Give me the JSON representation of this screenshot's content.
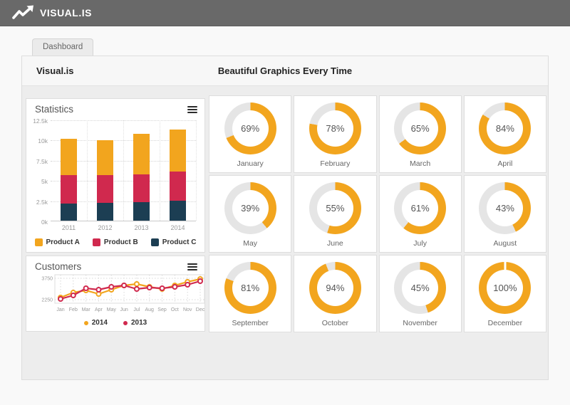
{
  "header": {
    "brand": "VISUAL.IS"
  },
  "tabs": [
    {
      "label": "Dashboard"
    }
  ],
  "panel_header": {
    "title": "Visual.is",
    "tagline": "Beautiful Graphics Every Time"
  },
  "colors": {
    "topbar": "#696969",
    "yellow": "#F2A51E",
    "red": "#D0294E",
    "navy": "#1C3E53",
    "track": "#E5E5E5",
    "grid": "#d4d4d4"
  },
  "chart_data": [
    {
      "type": "bar",
      "stacked": true,
      "title": "Statistics",
      "categories": [
        "2011",
        "2012",
        "2013",
        "2014"
      ],
      "series": [
        {
          "name": "Product A",
          "color": "#F2A51E",
          "values": [
            4500,
            4300,
            5000,
            5200
          ]
        },
        {
          "name": "Product B",
          "color": "#D0294E",
          "values": [
            3500,
            3450,
            3500,
            3600
          ]
        },
        {
          "name": "Product C",
          "color": "#1C3E53",
          "values": [
            2100,
            2200,
            2250,
            2500
          ]
        }
      ],
      "ylim": [
        0,
        12500
      ],
      "yticks": [
        "12.5k",
        "10k",
        "7.5k",
        "5k",
        "2.5k",
        "0k"
      ],
      "grid": true,
      "legend_position": "bottom"
    },
    {
      "type": "line",
      "title": "Customers",
      "x": [
        "Jan",
        "Feb",
        "Mar",
        "Apr",
        "May",
        "Jun",
        "Jul",
        "Aug",
        "Sep",
        "Oct",
        "Nov",
        "Dec"
      ],
      "series": [
        {
          "name": "2014",
          "color": "#F2A51E",
          "values": [
            2400,
            2750,
            2900,
            2650,
            2950,
            3250,
            3350,
            3150,
            3000,
            3250,
            3500,
            3700
          ]
        },
        {
          "name": "2013",
          "color": "#D0294E",
          "values": [
            2300,
            2550,
            3050,
            2950,
            3150,
            3250,
            3000,
            3100,
            3050,
            3150,
            3300,
            3550
          ]
        }
      ],
      "yticks": [
        3750,
        2250
      ],
      "ylim": [
        2000,
        3900
      ],
      "grid": true,
      "legend_position": "bottom",
      "marker": "circle-open"
    },
    {
      "type": "pie",
      "variant": "donut-grid",
      "unit": "%",
      "categories": [
        "January",
        "February",
        "March",
        "April",
        "May",
        "June",
        "July",
        "August",
        "September",
        "October",
        "November",
        "December"
      ],
      "values": [
        69,
        78,
        65,
        84,
        39,
        55,
        61,
        43,
        81,
        94,
        45,
        100
      ],
      "fill_color": "#F2A51E",
      "track_color": "#E5E5E5"
    }
  ]
}
